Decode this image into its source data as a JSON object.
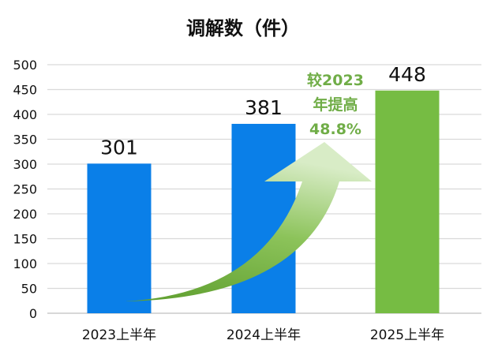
{
  "chart_data": {
    "type": "bar",
    "title": "调解数（件）",
    "categories": [
      "2023上半年",
      "2024上半年",
      "2025上半年"
    ],
    "values": [
      301,
      381,
      448
    ],
    "bar_colors": [
      "#0a7fe8",
      "#0a7fe8",
      "#76bc43"
    ],
    "ylim": [
      0,
      500
    ],
    "yticks": [
      0,
      50,
      100,
      150,
      200,
      250,
      300,
      350,
      400,
      450,
      500
    ],
    "grid": true,
    "xlabel": "",
    "ylabel": "",
    "annotation": {
      "lines": [
        "较2023",
        "年提高",
        "48.8%"
      ],
      "color": "#70ad47"
    }
  }
}
